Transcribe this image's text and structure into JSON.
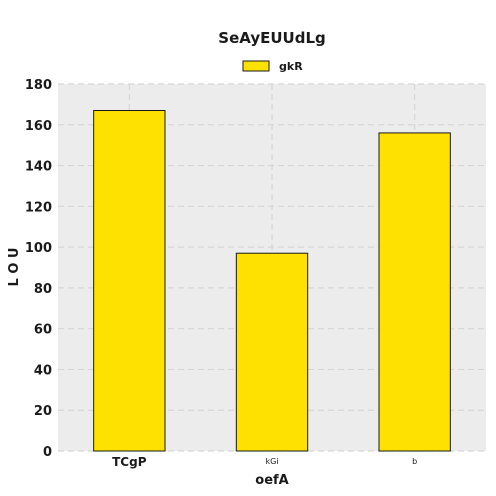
{
  "chart_data": {
    "type": "bar",
    "title": "SeAyEUUdLg",
    "xlabel": "oefA",
    "ylabel": "L O U",
    "categories": [
      "TCgP",
      "kGi",
      "b"
    ],
    "series": [
      {
        "name": "gkR",
        "values": [
          167,
          97,
          156
        ],
        "color": "#ffe100"
      }
    ],
    "ylim": [
      0,
      180
    ],
    "yticks": [
      0,
      20,
      40,
      60,
      80,
      100,
      120,
      140,
      160,
      180
    ],
    "grid": true,
    "legend_position": "top-center",
    "background_color": "#ececec",
    "bar_edge_color": "#1a1a1a"
  }
}
